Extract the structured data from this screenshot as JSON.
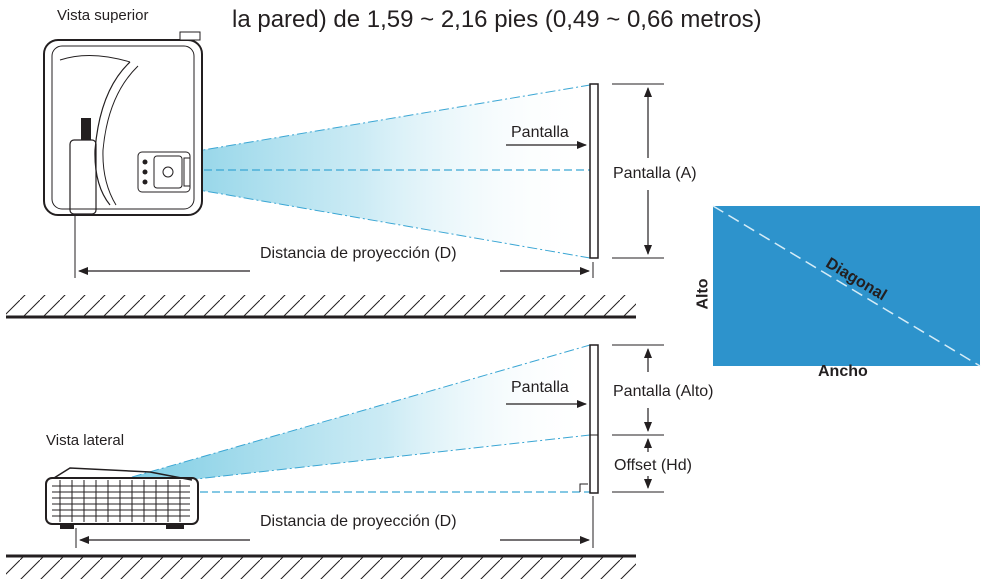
{
  "header": {
    "text": "la pared) de 1,59 ~ 2,16 pies (0,49 ~ 0,66 metros)"
  },
  "top_view": {
    "label": "Vista superior",
    "screen_label": "Pantalla",
    "screen_dimension_label": "Pantalla (A)",
    "distance_label": "Distancia de proyección (D)"
  },
  "side_view": {
    "label": "Vista lateral",
    "screen_label": "Pantalla",
    "screen_height_label": "Pantalla (Alto)",
    "offset_label": "Offset (Hd)",
    "distance_label": "Distancia de proyección (D)"
  },
  "screen_diagram": {
    "height_label": "Alto",
    "diagonal_label": "Diagonal",
    "width_label": "Ancho",
    "fill_color": "#2d93cc"
  },
  "colors": {
    "beam": "#8fd3e6",
    "line": "#231f20",
    "dash": "#3aa6d4"
  }
}
